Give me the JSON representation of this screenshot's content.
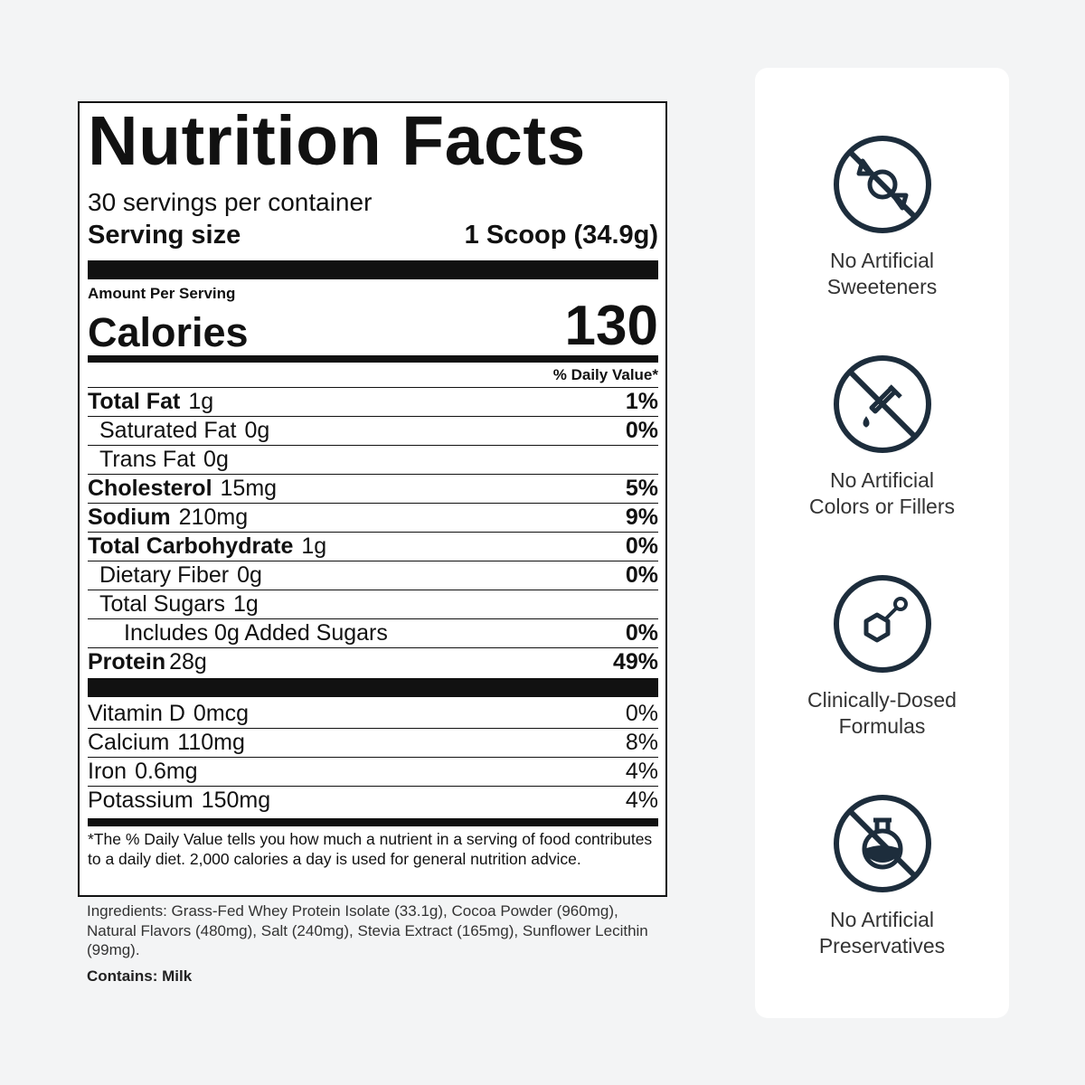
{
  "label": {
    "title": "Nutrition Facts",
    "servings": "30 servings per container",
    "serving_size_label": "Serving size",
    "serving_size": "1 Scoop (34.9g)",
    "amount_per_serving": "Amount Per Serving",
    "calories_label": "Calories",
    "calories": "130",
    "dv_header": "% Daily Value*",
    "nutrients": [
      {
        "name": "Total Fat",
        "amount": "1g",
        "dv": "1%"
      },
      {
        "name": "Saturated Fat",
        "amount": "0g",
        "dv": "0%"
      },
      {
        "name": "Trans Fat",
        "amount": "0g"
      },
      {
        "name": "Cholesterol",
        "amount": "15mg",
        "dv": "5%"
      },
      {
        "name": "Sodium",
        "amount": "210mg",
        "dv": "9%"
      },
      {
        "name": "Total Carbohydrate",
        "amount": "1g",
        "dv": "0%"
      },
      {
        "name": "Dietary Fiber",
        "amount": "0g",
        "dv": "0%"
      },
      {
        "name": "Total Sugars",
        "amount": "1g"
      },
      {
        "name": "Includes 0g Added Sugars",
        "dv": "0%"
      },
      {
        "name": "Protein",
        "amount": "28g",
        "dv": "49%"
      }
    ],
    "vitamins": [
      {
        "name": "Vitamin D",
        "amount": "0mcg",
        "dv": "0%"
      },
      {
        "name": "Calcium",
        "amount": "110mg",
        "dv": "8%"
      },
      {
        "name": "Iron",
        "amount": "0.6mg",
        "dv": "4%"
      },
      {
        "name": "Potassium",
        "amount": "150mg",
        "dv": "4%"
      }
    ],
    "footnote": "*The % Daily Value tells you how much a nutrient in a serving of food contributes to a daily diet. 2,000 calories a day is used for general nutrition advice."
  },
  "ingredients": "Ingredients: Grass-Fed Whey Protein Isolate (33.1g), Cocoa Powder (960mg), Natural Flavors (480mg), Salt (240mg), Stevia Extract (165mg), Sunflower Lecithin (99mg).",
  "contains": {
    "label": "Contains:",
    "value": "Milk"
  },
  "badges": [
    {
      "lines": [
        "No Artificial",
        "Sweeteners"
      ]
    },
    {
      "lines": [
        "No Artificial",
        "Colors or Fillers"
      ]
    },
    {
      "lines": [
        "Clinically-Dosed",
        "Formulas"
      ]
    },
    {
      "lines": [
        "No Artificial",
        "Preservatives"
      ]
    }
  ]
}
